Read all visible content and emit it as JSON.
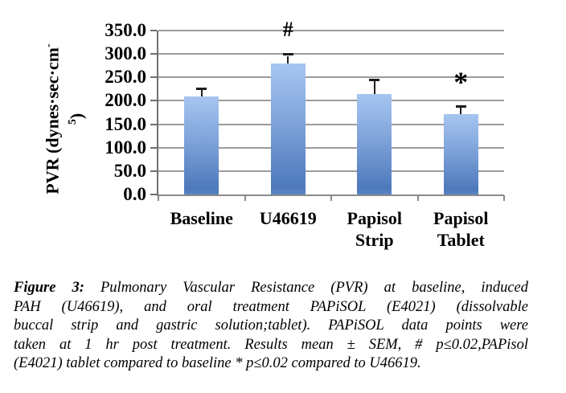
{
  "chart_data": {
    "type": "bar",
    "title": "",
    "categories": [
      "Baseline",
      "U46619",
      "Papisol Strip",
      "Papisol Tablet"
    ],
    "category_label_lines": [
      [
        "Baseline"
      ],
      [
        "U46619"
      ],
      [
        "Papisol",
        "Strip"
      ],
      [
        "Papisol",
        "Tablet"
      ]
    ],
    "values": [
      209,
      280,
      214,
      172
    ],
    "sem": [
      14,
      16,
      28,
      13
    ],
    "series_note": "Results mean ± SEM",
    "ylabel": "PVR (dynes·sec·cm⁻⁵)",
    "ylabel_parts": {
      "main": "PVR (dynes·sec·cm",
      "exp_minus": "-",
      "exp_digit": "5",
      "close": ")"
    },
    "xlabel": "",
    "ylim": [
      0,
      350
    ],
    "ytick_step": 50,
    "ytick_labels": [
      "0.0",
      "50.0",
      "100.0",
      "150.0",
      "200.0",
      "250.0",
      "300.0",
      "350.0"
    ],
    "grid": true,
    "legend": false,
    "annotations": [
      {
        "text": "#",
        "category_index": 1,
        "value": 352
      },
      {
        "text": "*",
        "category_index": 3,
        "value": 252
      }
    ],
    "colors": {
      "bar_gradient_top": "#a6c5f1",
      "bar_gradient_mid": "#7fa3da",
      "bar_gradient_bottom": "#4d79bb",
      "bar_gradient_edge": "#5b84c3",
      "gridline": "#9b9b9b",
      "axis": "#6f6f6f",
      "error_bar": "#1c1c1c",
      "text": "#000000"
    }
  },
  "figure": {
    "caption_label": "Figure 3:",
    "caption_lines": [
      "Pulmonary Vascular Resistance (PVR) at baseline, induced",
      "PAH (U46619), and oral treatment PAPiSOL (E4021) (dissolvable",
      "buccal strip and gastric solution;tablet). PAPiSOL data points were",
      "taken at 1 hr post treatment. Results mean ± SEM, # p≤0.02,PAPisol",
      "(E4021) tablet compared to baseline * p≤0.02 compared to U46619."
    ]
  }
}
